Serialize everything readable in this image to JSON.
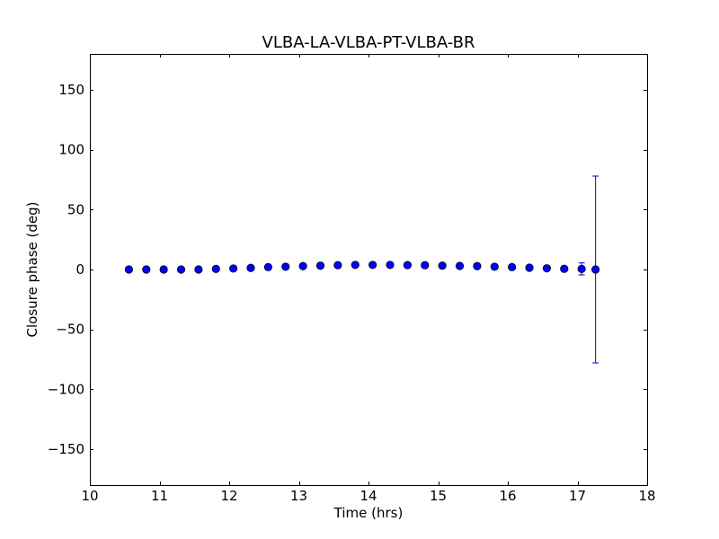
{
  "chart_data": {
    "type": "scatter",
    "title": "VLBA-LA-VLBA-PT-VLBA-BR",
    "xlabel": "Time (hrs)",
    "ylabel": "Closure phase (deg)",
    "xlim": [
      10,
      18
    ],
    "ylim": [
      -180,
      180
    ],
    "xticks": [
      10,
      11,
      12,
      13,
      14,
      15,
      16,
      17,
      18
    ],
    "yticks": [
      -150,
      -100,
      -50,
      0,
      50,
      100,
      150
    ],
    "ytick_labels": [
      "−150",
      "−100",
      "−50",
      "0",
      "50",
      "100",
      "150"
    ],
    "grid": false,
    "legend": "none",
    "marker_color": "#0000ff",
    "errorbar_color": "#0000cc",
    "series": [
      {
        "x": [
          10.56,
          10.81,
          11.06,
          11.31,
          11.56,
          11.81,
          12.06,
          12.31,
          12.56,
          12.81,
          13.06,
          13.31,
          13.56,
          13.81,
          14.06,
          14.31,
          14.56,
          14.81,
          15.06,
          15.31,
          15.56,
          15.81,
          16.06,
          16.31,
          16.56,
          16.81,
          17.06,
          17.26
        ],
        "y": [
          0.0,
          0.0,
          0.0,
          0.0,
          0.0,
          0.5,
          0.8,
          1.3,
          2.0,
          2.3,
          2.8,
          3.2,
          3.6,
          3.8,
          3.8,
          3.8,
          3.7,
          3.6,
          3.2,
          3.0,
          2.8,
          2.3,
          2.0,
          1.5,
          1.0,
          0.6,
          0.5,
          0.0
        ],
        "yerr": [
          0.5,
          0.5,
          0.5,
          0.5,
          0.5,
          0.5,
          0.5,
          0.5,
          0.5,
          0.5,
          0.5,
          0.5,
          0.5,
          0.5,
          0.5,
          0.5,
          0.5,
          0.5,
          0.5,
          0.5,
          0.5,
          0.5,
          0.5,
          0.5,
          0.5,
          1.0,
          5.0,
          78.0
        ]
      }
    ]
  }
}
